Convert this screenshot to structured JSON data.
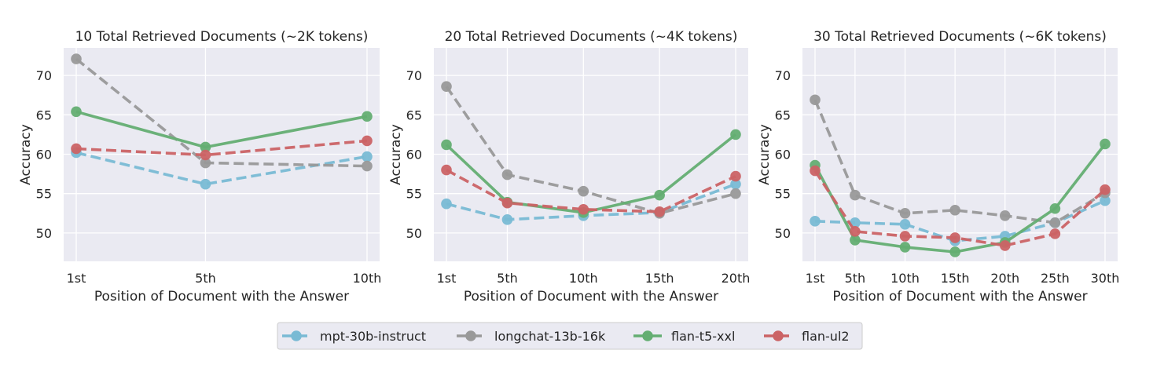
{
  "chart_data": [
    {
      "type": "line",
      "title": "10 Total Retrieved Documents (~2K tokens)",
      "xlabel": "Position of Document with the Answer",
      "ylabel": "Accuracy",
      "x": [
        1,
        5,
        10
      ],
      "categories": [
        "1st",
        "5th",
        "10th"
      ],
      "yticks": [
        50,
        55,
        60,
        65,
        70
      ],
      "ylim": [
        46.4,
        73.5
      ],
      "grid": true,
      "series": [
        {
          "name": "mpt-30b-instruct",
          "values": [
            60.2,
            56.2,
            59.7
          ]
        },
        {
          "name": "longchat-13b-16k",
          "values": [
            72.1,
            58.9,
            58.5
          ]
        },
        {
          "name": "flan-t5-xxl",
          "values": [
            65.4,
            60.9,
            64.8
          ]
        },
        {
          "name": "flan-ul2",
          "values": [
            60.7,
            59.9,
            61.7
          ]
        }
      ]
    },
    {
      "type": "line",
      "title": "20 Total Retrieved Documents (~4K tokens)",
      "xlabel": "Position of Document with the Answer",
      "ylabel": "Accuracy",
      "x": [
        1,
        5,
        10,
        15,
        20
      ],
      "categories": [
        "1st",
        "5th",
        "10th",
        "15th",
        "20th"
      ],
      "yticks": [
        50,
        55,
        60,
        65,
        70
      ],
      "ylim": [
        46.4,
        73.5
      ],
      "grid": true,
      "series": [
        {
          "name": "mpt-30b-instruct",
          "values": [
            53.7,
            51.7,
            52.2,
            52.6,
            56.2
          ]
        },
        {
          "name": "longchat-13b-16k",
          "values": [
            68.6,
            57.4,
            55.3,
            52.5,
            55.0
          ]
        },
        {
          "name": "flan-t5-xxl",
          "values": [
            61.2,
            53.9,
            52.6,
            54.8,
            62.5
          ]
        },
        {
          "name": "flan-ul2",
          "values": [
            58.0,
            53.8,
            53.0,
            52.7,
            57.2
          ]
        }
      ]
    },
    {
      "type": "line",
      "title": "30 Total Retrieved Documents (~6K tokens)",
      "xlabel": "Position of Document with the Answer",
      "ylabel": "Accuracy",
      "x": [
        1,
        5,
        10,
        15,
        20,
        25,
        30
      ],
      "categories": [
        "1st",
        "5th",
        "10th",
        "15th",
        "20th",
        "25th",
        "30th"
      ],
      "yticks": [
        50,
        55,
        60,
        65,
        70
      ],
      "ylim": [
        46.4,
        73.5
      ],
      "grid": true,
      "series": [
        {
          "name": "mpt-30b-instruct",
          "values": [
            51.5,
            51.3,
            51.1,
            49.0,
            49.6,
            51.3,
            54.1
          ]
        },
        {
          "name": "longchat-13b-16k",
          "values": [
            66.9,
            54.8,
            52.5,
            52.9,
            52.2,
            51.3,
            55.1
          ]
        },
        {
          "name": "flan-t5-xxl",
          "values": [
            58.6,
            49.1,
            48.2,
            47.6,
            48.8,
            53.1,
            61.3
          ]
        },
        {
          "name": "flan-ul2",
          "values": [
            57.9,
            50.2,
            49.6,
            49.4,
            48.4,
            49.9,
            55.5
          ]
        }
      ]
    }
  ],
  "legend": {
    "placement": "bottom-center",
    "items": [
      {
        "name": "mpt-30b-instruct",
        "color": "#79BAD4",
        "style": "dashed"
      },
      {
        "name": "longchat-13b-16k",
        "color": "#999999",
        "style": "dashed"
      },
      {
        "name": "flan-t5-xxl",
        "color": "#64AE72",
        "style": "solid"
      },
      {
        "name": "flan-ul2",
        "color": "#CB6365",
        "style": "dashed"
      }
    ]
  },
  "colors": {
    "plot_background": "#EAEAF2",
    "gridline": "#FFFFFF"
  }
}
